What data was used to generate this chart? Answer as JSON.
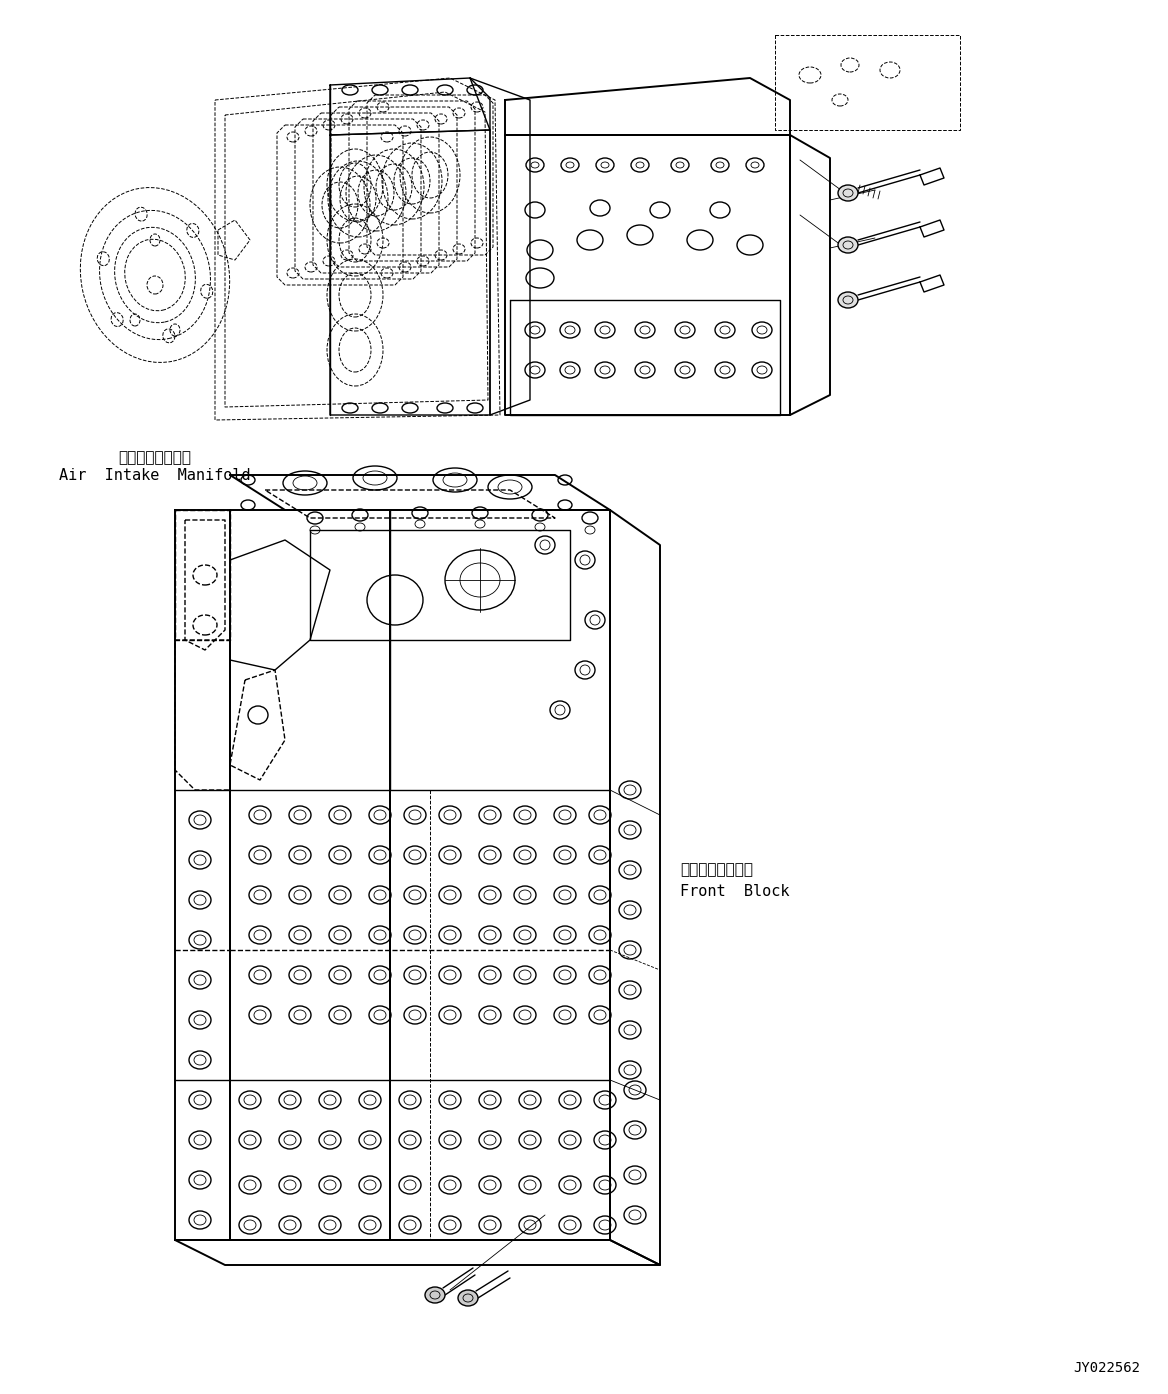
{
  "background_color": "#ffffff",
  "line_color": "#000000",
  "lw": 1.0,
  "lw_thick": 1.4,
  "lw_thin": 0.6,
  "lw_dash": 0.7,
  "label_air_intake_jp": "吸気マニホールド",
  "label_air_intake_en": "Air  Intake  Manifold",
  "label_front_block_jp": "フロントブロック",
  "label_front_block_en": "Front  Block",
  "part_number": "JY022562",
  "fs_label": 11,
  "fs_part": 10
}
